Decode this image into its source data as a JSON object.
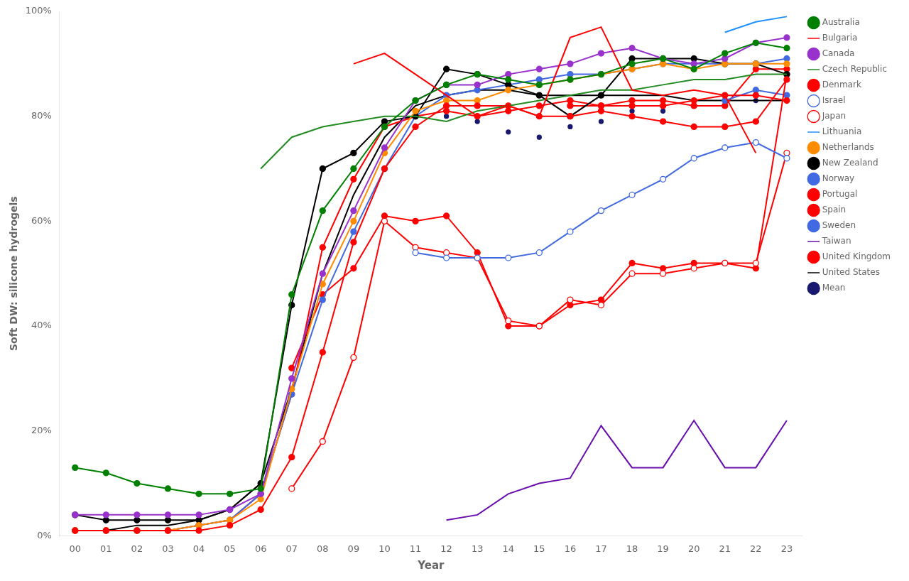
{
  "chart_data": {
    "type": "line",
    "xlabel": "Year",
    "ylabel": "Soft DW: silicone hydrogels",
    "x": [
      0,
      1,
      2,
      3,
      4,
      5,
      6,
      7,
      8,
      9,
      10,
      11,
      12,
      13,
      14,
      15,
      16,
      17,
      18,
      19,
      20,
      21,
      22,
      23
    ],
    "xlim": [
      -0.5,
      23.5
    ],
    "xticks": [
      {
        "value": 0,
        "label": "00"
      },
      {
        "value": 1,
        "label": "01"
      },
      {
        "value": 2,
        "label": "02"
      },
      {
        "value": 3,
        "label": "03"
      },
      {
        "value": 4,
        "label": "04"
      },
      {
        "value": 5,
        "label": "05"
      },
      {
        "value": 6,
        "label": "06"
      },
      {
        "value": 7,
        "label": "07"
      },
      {
        "value": 8,
        "label": "08"
      },
      {
        "value": 9,
        "label": "09"
      },
      10,
      11,
      12,
      13,
      14,
      15,
      16,
      17,
      18,
      19,
      20,
      21,
      22,
      23
    ],
    "ylim": [
      0,
      100
    ],
    "yticks": [
      {
        "value": 0,
        "label": "0%"
      },
      {
        "value": 20,
        "label": "20%"
      },
      {
        "value": 40,
        "label": "40%"
      },
      {
        "value": 60,
        "label": "60%"
      },
      {
        "value": 80,
        "label": "80%"
      },
      {
        "value": 100,
        "label": "100%"
      }
    ],
    "grid": false,
    "legend": "right",
    "series": [
      {
        "name": "Australia",
        "color": "#008000",
        "marker": "circle",
        "line_style": "solid",
        "values": [
          13,
          12,
          10,
          9,
          8,
          8,
          9,
          46,
          62,
          70,
          78,
          83,
          86,
          88,
          87,
          86,
          87,
          88,
          90,
          91,
          89,
          92,
          94,
          93
        ]
      },
      {
        "name": "Bulgaria",
        "color": "#FF0000",
        "marker": "none",
        "line_style": "solid",
        "values": [
          null,
          null,
          null,
          null,
          null,
          null,
          null,
          null,
          null,
          90,
          92,
          88,
          84,
          80,
          82,
          80,
          95,
          97,
          85,
          84,
          85,
          84,
          73,
          null
        ]
      },
      {
        "name": "Canada",
        "color": "#9932CC",
        "marker": "circle",
        "line_style": "solid",
        "values": [
          4,
          4,
          4,
          4,
          4,
          5,
          8,
          30,
          50,
          62,
          74,
          83,
          86,
          86,
          88,
          89,
          90,
          92,
          93,
          91,
          90,
          91,
          94,
          95
        ]
      },
      {
        "name": "Czech Republic",
        "color": "#228B22",
        "marker": "none",
        "line_style": "solid",
        "values": [
          null,
          null,
          null,
          null,
          null,
          null,
          70,
          76,
          78,
          79,
          80,
          80,
          79,
          81,
          82,
          83,
          84,
          85,
          85,
          86,
          87,
          87,
          88,
          88
        ]
      },
      {
        "name": "Denmark",
        "color": "#FF0000",
        "marker": "circle",
        "line_style": "solid",
        "values": [
          1,
          1,
          1,
          1,
          1,
          2,
          5,
          15,
          35,
          56,
          70,
          78,
          82,
          82,
          82,
          80,
          80,
          81,
          80,
          79,
          78,
          78,
          79,
          87
        ]
      },
      {
        "name": "Israel",
        "color": "#4169E1",
        "marker": "open_circle",
        "line_style": "solid",
        "values": [
          null,
          null,
          null,
          null,
          null,
          null,
          null,
          null,
          null,
          null,
          null,
          54,
          53,
          53,
          53,
          54,
          58,
          62,
          65,
          68,
          72,
          74,
          75,
          72
        ]
      },
      {
        "name": "Japan",
        "color": "#FF0000",
        "marker": "open_circle",
        "line_style": "solid",
        "values": [
          null,
          null,
          null,
          null,
          null,
          null,
          null,
          9,
          18,
          34,
          60,
          55,
          54,
          53,
          41,
          40,
          45,
          44,
          50,
          50,
          51,
          52,
          52,
          73
        ]
      },
      {
        "name": "Lithuania",
        "color": "#1E90FF",
        "marker": "none",
        "line_style": "solid",
        "values": [
          null,
          null,
          null,
          null,
          null,
          null,
          null,
          null,
          null,
          null,
          null,
          null,
          null,
          null,
          null,
          null,
          null,
          null,
          null,
          null,
          null,
          96,
          98,
          99
        ]
      },
      {
        "name": "Netherlands",
        "color": "#FF8C00",
        "marker": "circle",
        "line_style": "solid",
        "values": [
          1,
          1,
          1,
          1,
          2,
          3,
          7,
          28,
          48,
          60,
          73,
          81,
          83,
          83,
          85,
          86,
          87,
          88,
          89,
          90,
          89,
          90,
          90,
          90
        ]
      },
      {
        "name": "New Zealand",
        "color": "#000000",
        "marker": "circle",
        "line_style": "solid",
        "values": [
          4,
          3,
          3,
          3,
          3,
          5,
          10,
          44,
          70,
          73,
          79,
          80,
          89,
          88,
          86,
          84,
          80,
          84,
          91,
          91,
          91,
          90,
          90,
          88
        ]
      },
      {
        "name": "Norway",
        "color": "#4169E1",
        "marker": "circle",
        "line_style": "solid",
        "values": [
          1,
          1,
          1,
          1,
          2,
          3,
          8,
          27,
          45,
          58,
          70,
          80,
          84,
          85,
          86,
          87,
          88,
          88,
          89,
          90,
          90,
          90,
          90,
          91
        ]
      },
      {
        "name": "Portugal",
        "color": "#FF0000",
        "marker": "circle",
        "line_style": "solid",
        "values": [
          null,
          null,
          null,
          null,
          null,
          null,
          null,
          null,
          null,
          null,
          null,
          null,
          null,
          null,
          null,
          null,
          82,
          82,
          82,
          82,
          83,
          84,
          84,
          83
        ]
      },
      {
        "name": "Spain",
        "color": "#FF0000",
        "marker": "circle",
        "line_style": "solid",
        "values": [
          null,
          null,
          null,
          null,
          null,
          null,
          null,
          32,
          46,
          51,
          61,
          60,
          61,
          54,
          40,
          40,
          44,
          45,
          52,
          51,
          52,
          52,
          51,
          88
        ]
      },
      {
        "name": "Sweden",
        "color": "#4169E1",
        "marker": "circle",
        "line_style": "solid",
        "values": [
          null,
          null,
          null,
          null,
          null,
          null,
          null,
          null,
          null,
          null,
          null,
          null,
          null,
          null,
          null,
          null,
          null,
          null,
          null,
          null,
          null,
          83,
          85,
          84
        ]
      },
      {
        "name": "Taiwan",
        "color": "#6A0DAD",
        "marker": "none",
        "line_style": "solid",
        "values": [
          null,
          null,
          null,
          null,
          null,
          null,
          null,
          null,
          null,
          null,
          null,
          null,
          3,
          4,
          8,
          10,
          11,
          21,
          13,
          13,
          22,
          13,
          13,
          22
        ]
      },
      {
        "name": "United Kingdom",
        "color": "#FF0000",
        "marker": "circle",
        "line_style": "solid",
        "values": [
          1,
          1,
          1,
          1,
          2,
          3,
          8,
          27,
          55,
          68,
          78,
          80,
          81,
          80,
          81,
          82,
          83,
          82,
          83,
          83,
          82,
          82,
          89,
          89
        ]
      },
      {
        "name": "United States",
        "color": "#000000",
        "marker": "none",
        "line_style": "solid",
        "values": [
          1,
          1,
          2,
          2,
          3,
          5,
          10,
          28,
          50,
          65,
          76,
          82,
          84,
          85,
          85,
          84,
          84,
          84,
          84,
          84,
          83,
          83,
          83,
          83
        ]
      },
      {
        "name": "Mean",
        "color": "#191970",
        "marker": "circle",
        "line_style": "none",
        "values": [
          4,
          4,
          4,
          4,
          4,
          5,
          9,
          30,
          50,
          62,
          73,
          78,
          80,
          79,
          77,
          76,
          78,
          79,
          81,
          81,
          82,
          83,
          83,
          83
        ]
      }
    ]
  }
}
